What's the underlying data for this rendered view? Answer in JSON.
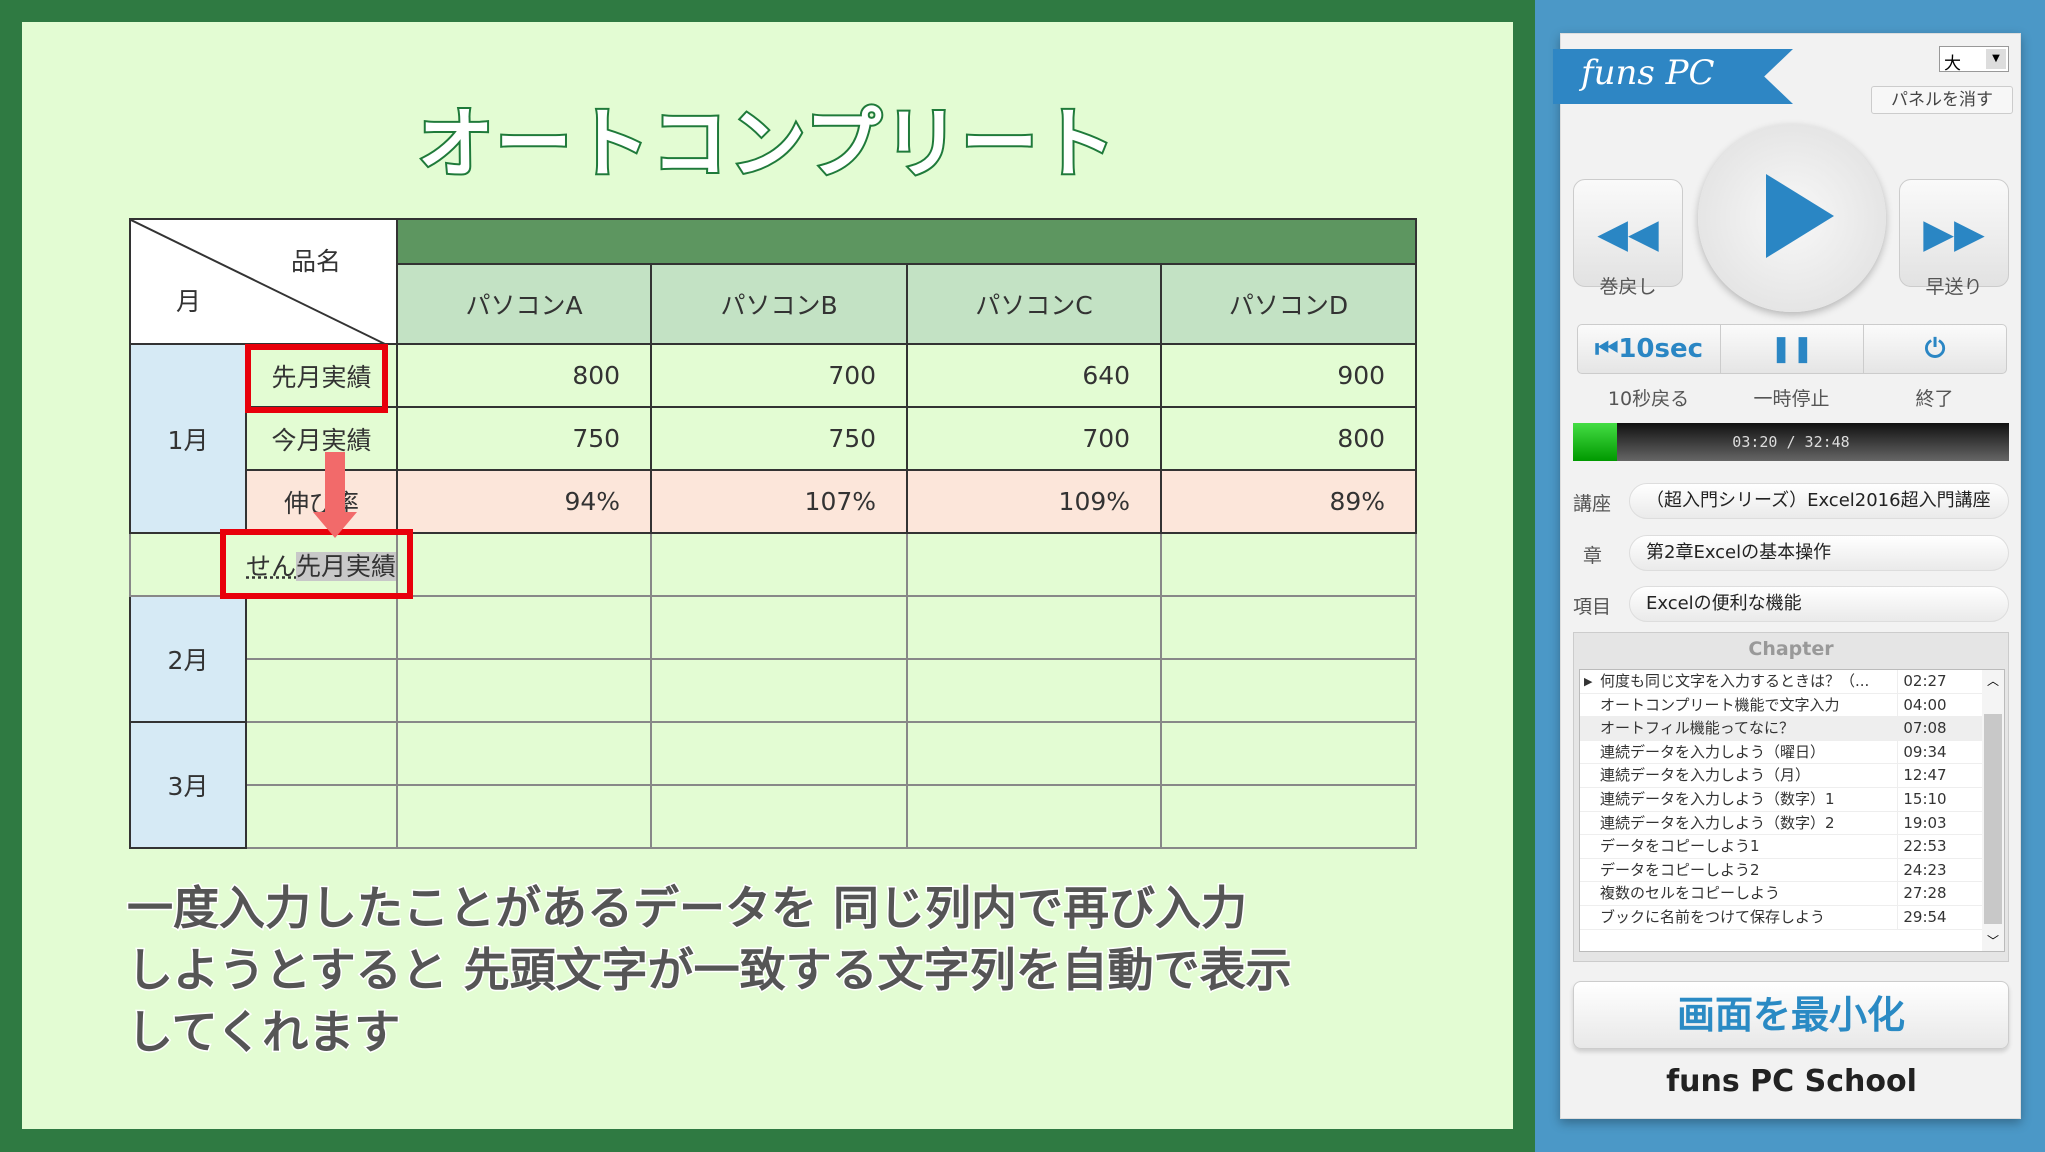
{
  "slide": {
    "title": "オートコンプリート",
    "table": {
      "corner_top": "品名",
      "corner_bottom": "月",
      "products": [
        "パソコンA",
        "パソコンB",
        "パソコンC",
        "パソコンD"
      ],
      "month1": "1月",
      "rows": [
        {
          "label": "先月実績",
          "values": [
            "800",
            "700",
            "640",
            "900"
          ]
        },
        {
          "label": "今月実績",
          "values": [
            "750",
            "750",
            "700",
            "800"
          ]
        },
        {
          "label": "伸び率",
          "values": [
            "94%",
            "107%",
            "109%",
            "89%"
          ]
        }
      ],
      "input_typed": "せん",
      "input_suggestion": "先月実績",
      "month2": "2月",
      "month3": "3月"
    },
    "description": [
      "一度入力したことがあるデータを 同じ列内で再び入力",
      "しようとすると 先頭文字が一致する文字列を自動で表示",
      "してくれます"
    ]
  },
  "player": {
    "logo": "funs PC",
    "size_select": "大",
    "hide_panel": "パネルを消す",
    "rewind": "巻戻し",
    "forward": "早送り",
    "back10_icon_text": "10sec",
    "back10": "10秒戻る",
    "pause": "一時停止",
    "quit": "終了",
    "time": "03:20 / 32:48",
    "progress_fraction": 0.102,
    "fields": [
      {
        "label": "講座",
        "value": "（超入門シリーズ）Excel2016超入門講座"
      },
      {
        "label": "章",
        "value": "第2章Excelの基本操作"
      },
      {
        "label": "項目",
        "value": "Excelの便利な機能"
      }
    ],
    "chapter_header": "Chapter",
    "chapters": [
      {
        "title": "何度も同じ文字を入力するときは？（...",
        "time": "02:27"
      },
      {
        "title": "オートコンプリート機能で文字入力",
        "time": "04:00"
      },
      {
        "title": "オートフィル機能ってなに？",
        "time": "07:08"
      },
      {
        "title": "連続データを入力しよう（曜日）",
        "time": "09:34"
      },
      {
        "title": "連続データを入力しよう（月）",
        "time": "12:47"
      },
      {
        "title": "連続データを入力しよう（数字）1",
        "time": "15:10"
      },
      {
        "title": "連続データを入力しよう（数字）2",
        "time": "19:03"
      },
      {
        "title": "データをコピーしよう1",
        "time": "22:53"
      },
      {
        "title": "データをコピーしよう2",
        "time": "24:23"
      },
      {
        "title": "複数のセルをコピーしよう",
        "time": "27:28"
      },
      {
        "title": "ブックに名前をつけて保存しよう",
        "time": "29:54"
      }
    ],
    "minimize": "画面を最小化",
    "school": "funs PC School",
    "accent": "#2a86c4"
  }
}
